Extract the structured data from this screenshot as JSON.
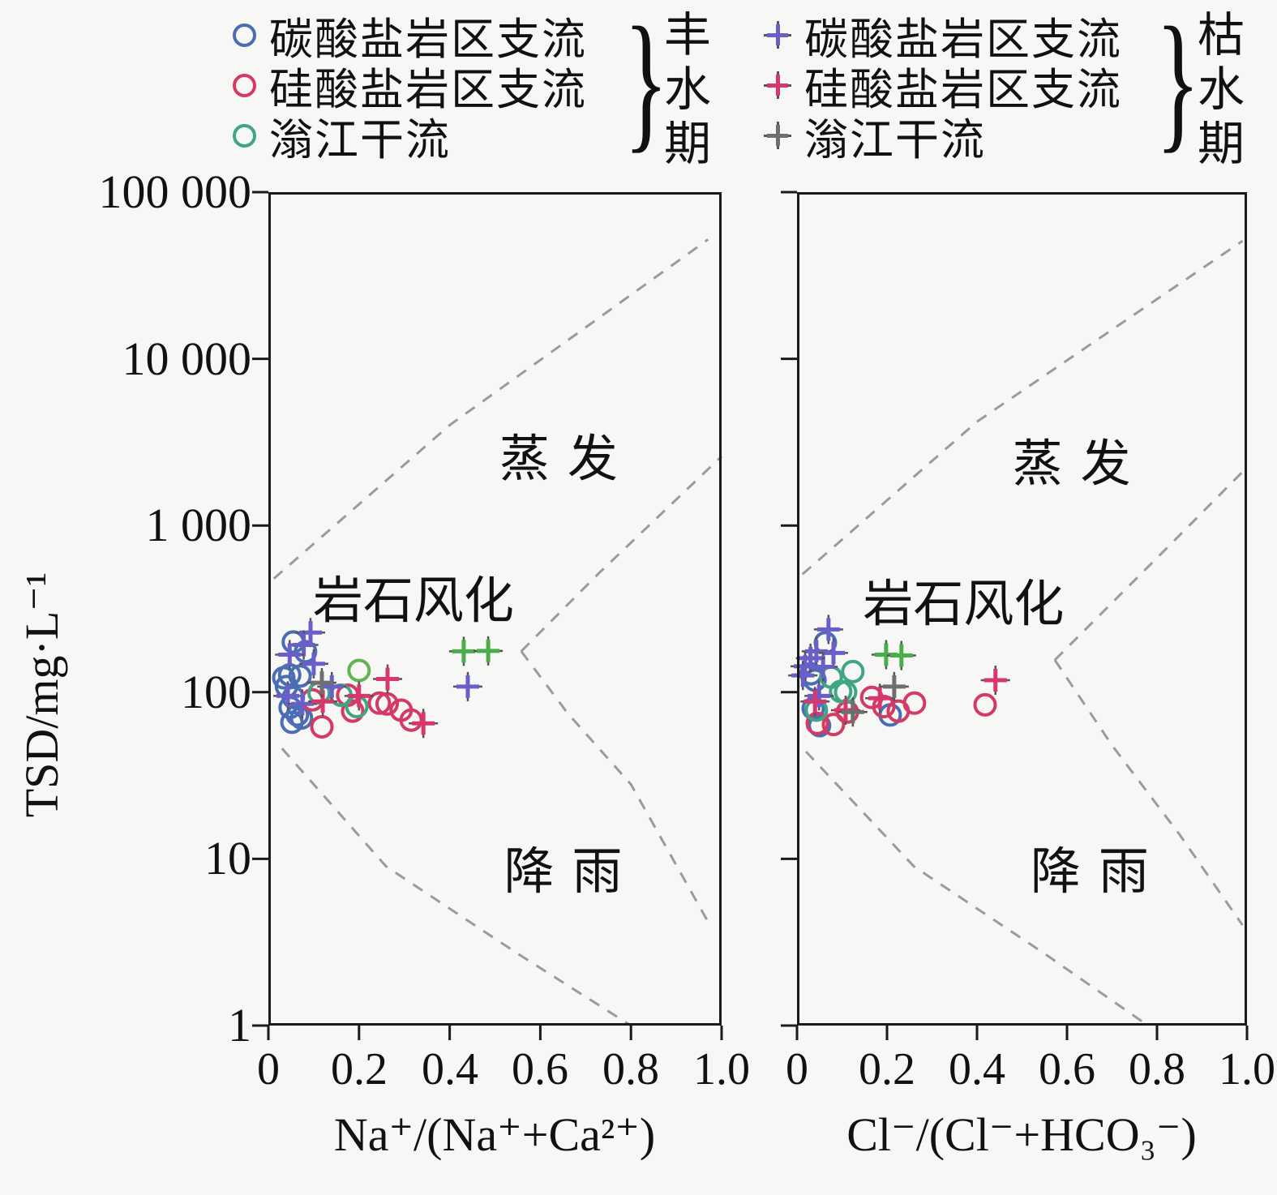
{
  "figure": {
    "ylabel": "TSD/mg·L⁻¹",
    "y_ticks": [
      "100 000",
      "10 000",
      "1 000",
      "100",
      "10",
      "1"
    ],
    "y_tick_values": [
      100000,
      10000,
      1000,
      100,
      10,
      1
    ],
    "x_ticks": [
      "0",
      "0.2",
      "0.4",
      "0.6",
      "0.8",
      "1.0"
    ],
    "grid": "off",
    "boundary_line_color": "#9b9b9b",
    "axis_color": "#1a1a1a"
  },
  "legend": {
    "brace": "}",
    "wet": {
      "group": "丰水期",
      "items": [
        {
          "label": "碳酸盐岩区支流",
          "marker": "circle",
          "color": "#4a6db4"
        },
        {
          "label": "硅酸盐岩区支流",
          "marker": "circle",
          "color": "#d33a64"
        },
        {
          "label": "滃江干流",
          "marker": "circle",
          "color": "#3fa583"
        }
      ]
    },
    "dry": {
      "group": "枯水期",
      "items": [
        {
          "label": "碳酸盐岩区支流",
          "marker": "plus",
          "color": "#6a5ec8"
        },
        {
          "label": "硅酸盐岩区支流",
          "marker": "plus",
          "color": "#d8376d"
        },
        {
          "label": "滃江干流",
          "marker": "plus",
          "color": "#6f6f6f"
        }
      ]
    }
  },
  "chart_data": [
    {
      "panel": "left",
      "type": "scatter",
      "xlabel": "Na⁺/(Na⁺+Ca²⁺)",
      "ylabel": "TSD/mg·L⁻¹",
      "xlim": [
        0,
        1.0
      ],
      "ylim": [
        1,
        100000
      ],
      "yscale": "log",
      "zones": [
        {
          "label": "蒸发",
          "x": 0.66,
          "y": 2700
        },
        {
          "label": "岩石风化",
          "x": 0.32,
          "y": 380
        },
        {
          "label": "降雨",
          "x": 0.67,
          "y": 9
        }
      ],
      "boundaries": [
        {
          "name": "upper-evaporation-line",
          "points": [
            [
              0.012,
              480
            ],
            [
              0.4,
              4000
            ],
            [
              0.97,
              52000
            ]
          ]
        },
        {
          "name": "middle-upper-branch",
          "points": [
            [
              0.558,
              176
            ],
            [
              0.73,
              520
            ],
            [
              1.0,
              2600
            ]
          ]
        },
        {
          "name": "middle-lower-branch",
          "points": [
            [
              0.558,
              176
            ],
            [
              0.66,
              75
            ],
            [
              0.8,
              28
            ],
            [
              0.97,
              4.2
            ]
          ]
        },
        {
          "name": "lower-rainfall-line",
          "points": [
            [
              0.03,
              46
            ],
            [
              0.26,
              9
            ],
            [
              0.55,
              2.7
            ],
            [
              0.8,
              1.0
            ]
          ]
        }
      ],
      "series": [
        {
          "name": "碳酸盐岩区支流(丰水期)",
          "marker": "circle",
          "color": "#4a6db4",
          "points": [
            [
              0.055,
              200
            ],
            [
              0.082,
              175
            ],
            [
              0.034,
              122
            ],
            [
              0.047,
              127
            ],
            [
              0.07,
              125
            ],
            [
              0.04,
              108
            ],
            [
              0.055,
              93
            ],
            [
              0.048,
              81
            ],
            [
              0.064,
              73
            ],
            [
              0.073,
              70
            ],
            [
              0.052,
              66
            ]
          ]
        },
        {
          "name": "硅酸盐岩区支流(丰水期)",
          "marker": "circle",
          "color": "#d33a64",
          "points": [
            [
              0.097,
              90
            ],
            [
              0.118,
              62
            ],
            [
              0.175,
              96
            ],
            [
              0.186,
              77
            ],
            [
              0.245,
              86
            ],
            [
              0.262,
              85
            ],
            [
              0.293,
              78
            ],
            [
              0.315,
              68
            ]
          ]
        },
        {
          "name": "滃江干流(丰水期)",
          "marker": "circle",
          "color": "#3fa583",
          "points": [
            [
              0.2,
              135,
              "#62b354"
            ],
            [
              0.112,
              99
            ],
            [
              0.16,
              96
            ],
            [
              0.195,
              82
            ]
          ]
        },
        {
          "name": "碳酸盐岩区支流(枯水期)",
          "marker": "plus",
          "color": "#6a5ec8",
          "points": [
            [
              0.093,
              228
            ],
            [
              0.078,
              192
            ],
            [
              0.047,
              168
            ],
            [
              0.1,
              148
            ],
            [
              0.14,
              108
            ],
            [
              0.043,
              95
            ],
            [
              0.075,
              85
            ],
            [
              0.44,
              108
            ]
          ]
        },
        {
          "name": "硅酸盐岩区支流(枯水期)",
          "marker": "plus",
          "color": "#d8376d",
          "points": [
            [
              0.263,
              120
            ],
            [
              0.2,
              95
            ],
            [
              0.12,
              88
            ],
            [
              0.342,
              65
            ]
          ]
        },
        {
          "name": "滃江干流(枯水期)",
          "marker": "plus",
          "color": "#6f6f6f",
          "points": [
            [
              0.118,
              114
            ],
            [
              0.431,
              176,
              "#49ad49"
            ],
            [
              0.485,
              177,
              "#49ad49"
            ]
          ]
        }
      ]
    },
    {
      "panel": "right",
      "type": "scatter",
      "xlabel": "Cl⁻/(Cl⁻+HCO₃⁻)",
      "ylabel": "TSD/mg·L⁻¹",
      "xlim": [
        0,
        1.0
      ],
      "ylim": [
        1,
        100000
      ],
      "yscale": "log",
      "zones": [
        {
          "label": "蒸发",
          "x": 0.63,
          "y": 2500
        },
        {
          "label": "岩石风化",
          "x": 0.37,
          "y": 360
        },
        {
          "label": "降雨",
          "x": 0.67,
          "y": 9
        }
      ],
      "boundaries": [
        {
          "name": "upper-evaporation-line",
          "points": [
            [
              0.012,
              510
            ],
            [
              0.4,
              4200
            ],
            [
              0.99,
              51000
            ]
          ]
        },
        {
          "name": "middle-upper-branch",
          "points": [
            [
              0.573,
              156
            ],
            [
              0.84,
              820
            ],
            [
              0.99,
              2100
            ]
          ]
        },
        {
          "name": "middle-lower-branch",
          "points": [
            [
              0.573,
              156
            ],
            [
              0.7,
              48
            ],
            [
              0.85,
              14
            ],
            [
              0.99,
              4.0
            ]
          ]
        },
        {
          "name": "lower-rainfall-line",
          "points": [
            [
              0.02,
              44
            ],
            [
              0.26,
              9
            ],
            [
              0.55,
              2.7
            ],
            [
              0.78,
              1.0
            ]
          ]
        }
      ],
      "series": [
        {
          "name": "碳酸盐岩区支流(丰水期)",
          "marker": "circle",
          "color": "#4a6db4",
          "points": [
            [
              0.063,
              198
            ],
            [
              0.031,
              129
            ],
            [
              0.04,
              118
            ],
            [
              0.036,
              80
            ],
            [
              0.207,
              73
            ],
            [
              0.05,
              63
            ]
          ]
        },
        {
          "name": "硅酸盐岩区支流(丰水期)",
          "marker": "circle",
          "color": "#d33a64",
          "points": [
            [
              0.166,
              93
            ],
            [
              0.193,
              82
            ],
            [
              0.225,
              77
            ],
            [
              0.261,
              86
            ],
            [
              0.418,
              84
            ],
            [
              0.045,
              65
            ],
            [
              0.081,
              64
            ],
            [
              0.112,
              76
            ]
          ]
        },
        {
          "name": "滃江干流(丰水期)",
          "marker": "circle",
          "color": "#3fa583",
          "points": [
            [
              0.124,
              133
            ],
            [
              0.076,
              123
            ],
            [
              0.097,
              101
            ],
            [
              0.108,
              100
            ],
            [
              0.043,
              78
            ]
          ]
        },
        {
          "name": "碳酸盐岩区支流(枯水期)",
          "marker": "plus",
          "color": "#6a5ec8",
          "points": [
            [
              0.07,
              238
            ],
            [
              0.043,
              176
            ],
            [
              0.081,
              172
            ],
            [
              0.018,
              143
            ],
            [
              0.058,
              142
            ],
            [
              0.013,
              126
            ],
            [
              0.03,
              160
            ],
            [
              0.049,
              95
            ]
          ]
        },
        {
          "name": "硅酸盐岩区支流(枯水期)",
          "marker": "plus",
          "color": "#d8376d",
          "points": [
            [
              0.184,
              92
            ],
            [
              0.441,
              118
            ],
            [
              0.108,
              78
            ],
            [
              0.04,
              88
            ]
          ]
        },
        {
          "name": "滃江干流(枯水期)",
          "marker": "plus",
          "color": "#6f6f6f",
          "points": [
            [
              0.216,
              108
            ],
            [
              0.198,
              168,
              "#49ad49"
            ],
            [
              0.232,
              166,
              "#49ad49"
            ],
            [
              0.124,
              76
            ]
          ]
        }
      ]
    }
  ]
}
